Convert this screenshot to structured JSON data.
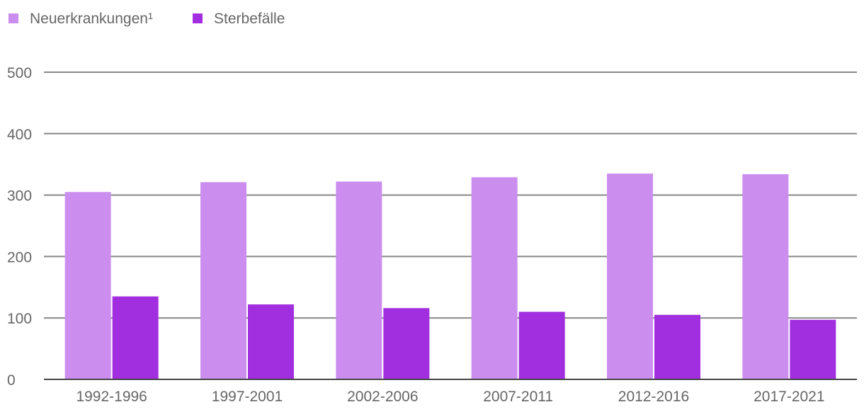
{
  "chart_data": {
    "type": "bar",
    "categories": [
      "1992-1996",
      "1997-2001",
      "2002-2006",
      "2007-2011",
      "2012-2016",
      "2017-2021"
    ],
    "series": [
      {
        "name": "Neuerkrankungen¹",
        "color": "#cb8eee",
        "values": [
          305,
          321,
          322,
          329,
          335,
          334
        ]
      },
      {
        "name": "Sterbefälle",
        "color": "#a22fdf",
        "values": [
          135,
          122,
          116,
          110,
          105,
          97
        ]
      }
    ],
    "yticks": [
      0,
      100,
      200,
      300,
      400,
      500
    ],
    "ylim": [
      0,
      500
    ],
    "grid": true,
    "legend_position": "top-left",
    "title": "",
    "xlabel": "",
    "ylabel": ""
  }
}
